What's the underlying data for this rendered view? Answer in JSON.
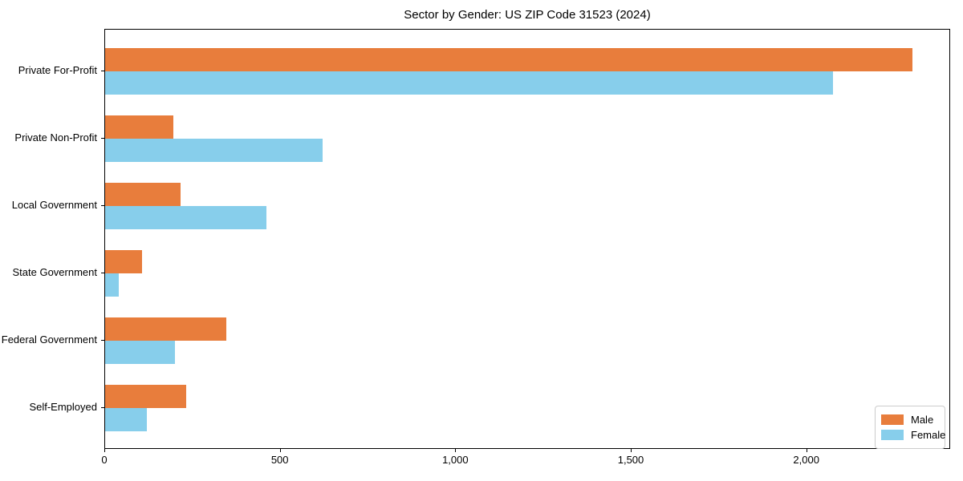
{
  "chart_data": {
    "type": "bar",
    "orientation": "horizontal",
    "title": "Sector by Gender: US ZIP Code 31523 (2024)",
    "categories": [
      "Private For-Profit",
      "Private Non-Profit",
      "Local Government",
      "State Government",
      "Federal Government",
      "Self-Employed"
    ],
    "series": [
      {
        "name": "Male",
        "color": "#E87D3C",
        "values": [
          2300,
          195,
          215,
          105,
          345,
          230
        ]
      },
      {
        "name": "Female",
        "color": "#87CEEB",
        "values": [
          2075,
          620,
          460,
          40,
          200,
          120
        ]
      }
    ],
    "xlabel": "",
    "ylabel": "",
    "xlim": [
      0,
      2410
    ],
    "x_ticks": [
      0,
      500,
      1000,
      1500,
      2000
    ],
    "x_tick_labels": [
      "0",
      "500",
      "1,000",
      "1,500",
      "2,000"
    ],
    "grid": false,
    "legend_position": "lower right",
    "background_color": "#ffffff",
    "spine_color": "#000000"
  }
}
